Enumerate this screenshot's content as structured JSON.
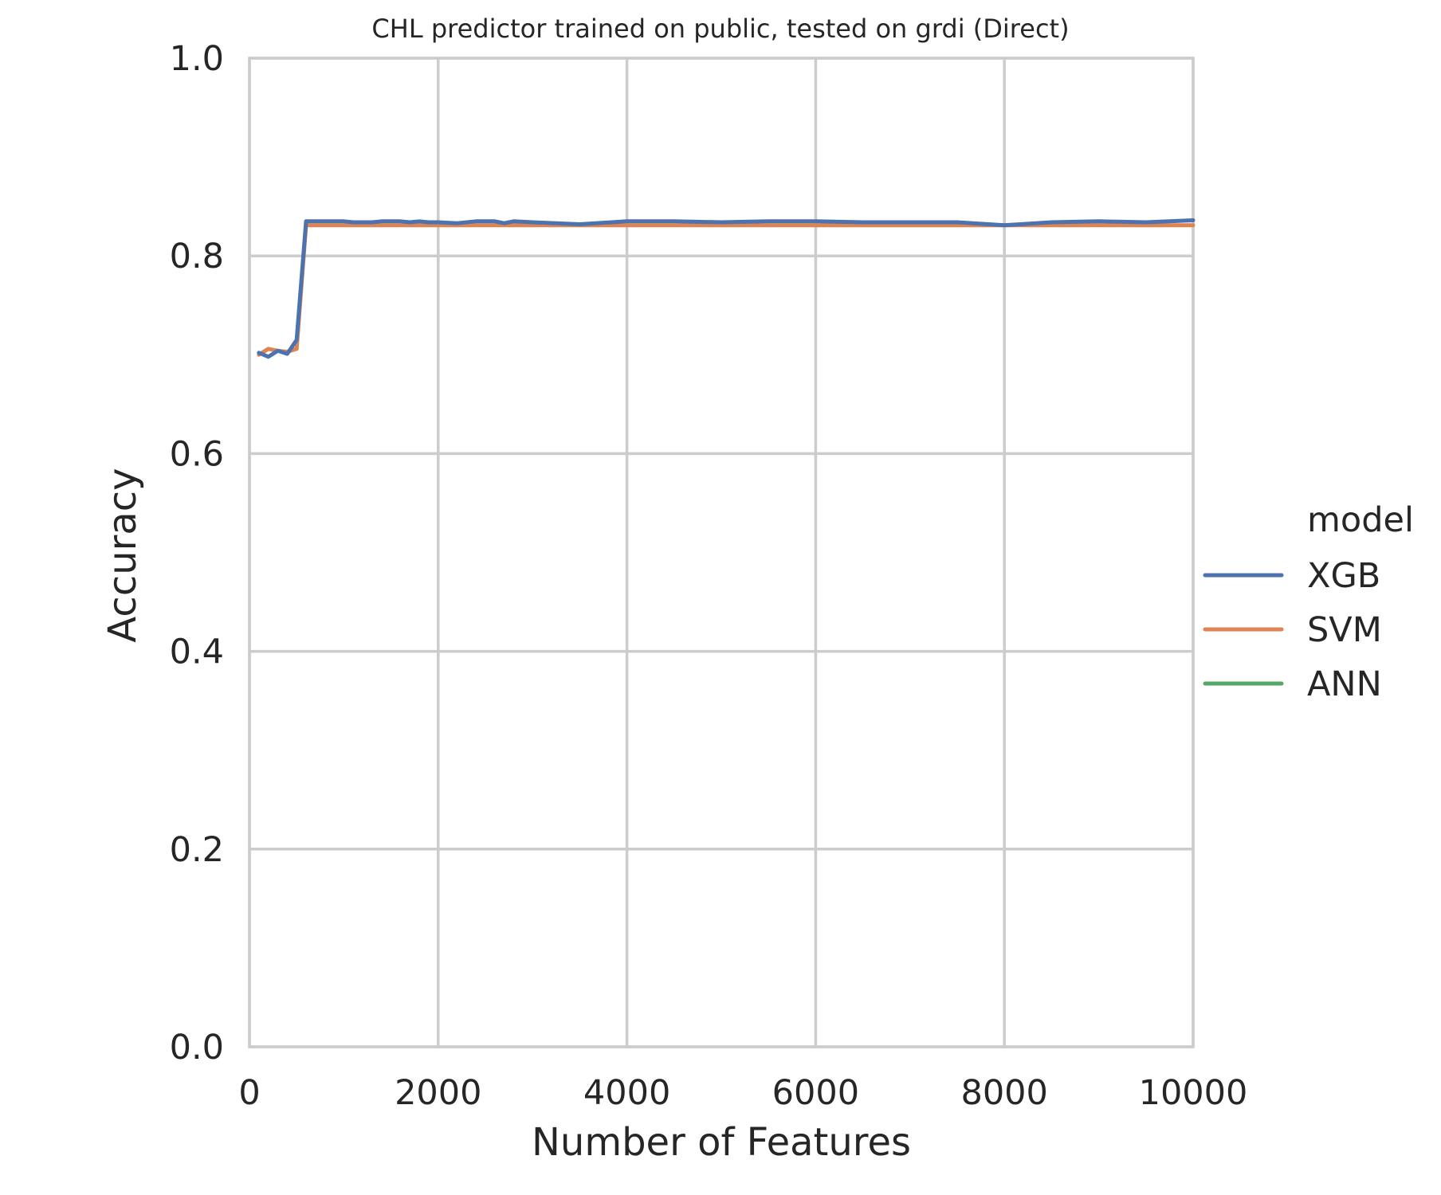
{
  "chart_data": {
    "type": "line",
    "title": "CHL predictor trained on public, tested on grdi (Direct)",
    "xlabel": "Number of Features",
    "ylabel": "Accuracy",
    "xlim": [
      0,
      10000
    ],
    "ylim": [
      0.0,
      1.0
    ],
    "xticks": [
      0,
      2000,
      4000,
      6000,
      8000,
      10000
    ],
    "xtick_labels": [
      "0",
      "2000",
      "4000",
      "6000",
      "8000",
      "10000"
    ],
    "yticks": [
      0.0,
      0.2,
      0.4,
      0.6,
      0.8,
      1.0
    ],
    "ytick_labels": [
      "0.0",
      "0.2",
      "0.4",
      "0.6",
      "0.8",
      "1.0"
    ],
    "grid": true,
    "legend": {
      "title": "model",
      "placement": "right-outside",
      "entries": [
        "XGB",
        "SVM",
        "ANN"
      ]
    },
    "series": [
      {
        "name": "XGB",
        "color": "#4c72b0",
        "x": [
          100,
          200,
          300,
          400,
          500,
          600,
          700,
          800,
          900,
          1000,
          1100,
          1200,
          1300,
          1400,
          1500,
          1600,
          1700,
          1800,
          1900,
          2000,
          2200,
          2400,
          2600,
          2700,
          2800,
          3000,
          3500,
          4000,
          4500,
          5000,
          5500,
          6000,
          6500,
          7000,
          7500,
          8000,
          8500,
          9000,
          9500,
          10000
        ],
        "y": [
          0.702,
          0.698,
          0.704,
          0.701,
          0.715,
          0.835,
          0.835,
          0.835,
          0.835,
          0.835,
          0.834,
          0.834,
          0.834,
          0.835,
          0.835,
          0.835,
          0.834,
          0.835,
          0.834,
          0.834,
          0.833,
          0.835,
          0.835,
          0.833,
          0.835,
          0.834,
          0.832,
          0.835,
          0.835,
          0.834,
          0.835,
          0.835,
          0.834,
          0.834,
          0.834,
          0.831,
          0.834,
          0.835,
          0.834,
          0.836
        ]
      },
      {
        "name": "SVM",
        "color": "#dd8452",
        "x": [
          100,
          200,
          300,
          400,
          500,
          600,
          1000,
          2000,
          3000,
          4000,
          5000,
          6000,
          7000,
          8000,
          9000,
          10000
        ],
        "y": [
          0.7,
          0.706,
          0.704,
          0.703,
          0.706,
          0.831,
          0.831,
          0.831,
          0.831,
          0.831,
          0.831,
          0.831,
          0.831,
          0.831,
          0.831,
          0.831
        ]
      },
      {
        "name": "ANN",
        "color": "#55a868",
        "x": [],
        "y": []
      }
    ]
  }
}
